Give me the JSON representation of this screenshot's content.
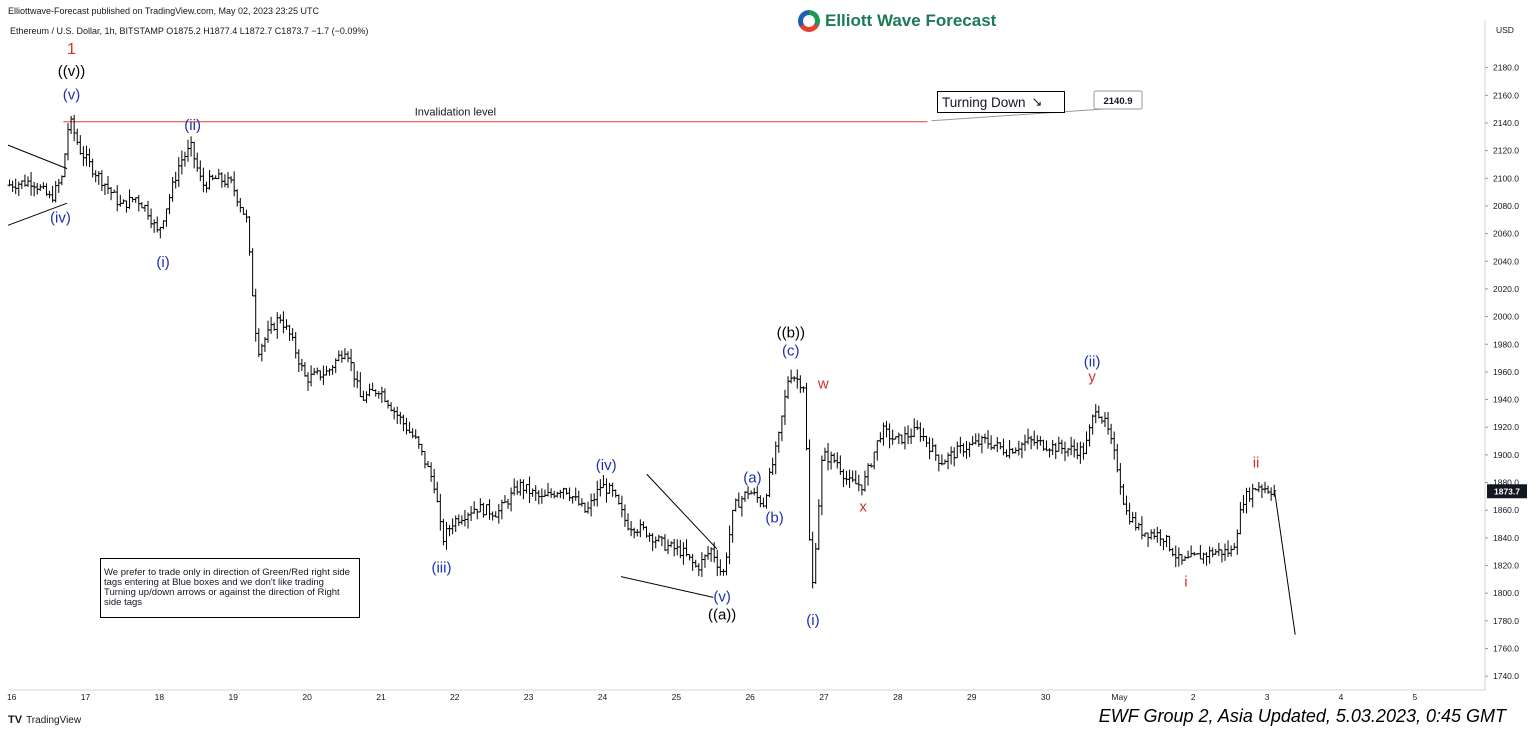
{
  "header": {
    "published": "Elliottwave-Forecast published on TradingView.com, May 02, 2023 23:25 UTC",
    "symbol_line": "Ethereum / U.S. Dollar, 1h, BITSTAMP  O1875.2  H1877.4  L1872.7  C1873.7  −1.7 (−0.09%)"
  },
  "brand": {
    "name": "Elliott Wave Forecast"
  },
  "footer": {
    "tradingview": "TradingView",
    "update": "EWF Group 2, Asia Updated, 5.03.2023, 0:45 GMT"
  },
  "note": "We prefer to trade only in direction of Green/Red right side tags entering at Blue boxes and we don't like trading Turning up/down arrows or against the direction of Right side tags",
  "turning_down": {
    "label": "Turning Down",
    "icon": "trend-down-arrow-icon"
  },
  "chart_data": {
    "type": "ohlc",
    "currency_label": "USD",
    "ylim": [
      1730,
      2200
    ],
    "y_ticks": [
      1740,
      1760,
      1780,
      1800,
      1820,
      1840,
      1860,
      1880,
      1900,
      1920,
      1940,
      1960,
      1980,
      2000,
      2020,
      2040,
      2060,
      2080,
      2100,
      2120,
      2140,
      2160,
      2180
    ],
    "x_ticks": [
      {
        "t": 16.0,
        "label": "16"
      },
      {
        "t": 17.0,
        "label": "17"
      },
      {
        "t": 18.0,
        "label": "18"
      },
      {
        "t": 19.0,
        "label": "19"
      },
      {
        "t": 20.0,
        "label": "20"
      },
      {
        "t": 21.0,
        "label": "21"
      },
      {
        "t": 22.0,
        "label": "22"
      },
      {
        "t": 23.0,
        "label": "23"
      },
      {
        "t": 24.0,
        "label": "24"
      },
      {
        "t": 25.0,
        "label": "25"
      },
      {
        "t": 26.0,
        "label": "26"
      },
      {
        "t": 27.0,
        "label": "27"
      },
      {
        "t": 28.0,
        "label": "28"
      },
      {
        "t": 29.0,
        "label": "29"
      },
      {
        "t": 30.0,
        "label": "30"
      },
      {
        "t": 31.0,
        "label": "May"
      },
      {
        "t": 32.0,
        "label": "2"
      },
      {
        "t": 33.0,
        "label": "3"
      },
      {
        "t": 34.0,
        "label": "4"
      },
      {
        "t": 35.0,
        "label": "5"
      }
    ],
    "time_range": [
      15.95,
      35.95
    ],
    "last_price": 1873.7,
    "invalidation": {
      "value": 2140.9,
      "label": "Invalidation level",
      "t_end": 28.4
    },
    "price_path": [
      [
        15.95,
        2095
      ],
      [
        16.3,
        2098
      ],
      [
        16.55,
        2085
      ],
      [
        16.7,
        2100
      ],
      [
        16.8,
        2143
      ],
      [
        16.95,
        2120
      ],
      [
        17.1,
        2108
      ],
      [
        17.3,
        2095
      ],
      [
        17.5,
        2080
      ],
      [
        17.7,
        2086
      ],
      [
        17.85,
        2078
      ],
      [
        18.0,
        2060
      ],
      [
        18.15,
        2085
      ],
      [
        18.3,
        2112
      ],
      [
        18.45,
        2122
      ],
      [
        18.6,
        2095
      ],
      [
        18.8,
        2100
      ],
      [
        19.0,
        2096
      ],
      [
        19.2,
        2070
      ],
      [
        19.35,
        1975
      ],
      [
        19.5,
        1988
      ],
      [
        19.65,
        2000
      ],
      [
        19.8,
        1985
      ],
      [
        20.0,
        1955
      ],
      [
        20.3,
        1960
      ],
      [
        20.55,
        1978
      ],
      [
        20.75,
        1940
      ],
      [
        21.0,
        1948
      ],
      [
        21.2,
        1932
      ],
      [
        21.5,
        1910
      ],
      [
        21.75,
        1878
      ],
      [
        21.85,
        1838
      ],
      [
        22.0,
        1852
      ],
      [
        22.3,
        1862
      ],
      [
        22.6,
        1858
      ],
      [
        22.9,
        1878
      ],
      [
        23.2,
        1868
      ],
      [
        23.5,
        1877
      ],
      [
        23.8,
        1858
      ],
      [
        24.0,
        1878
      ],
      [
        24.15,
        1873
      ],
      [
        24.35,
        1850
      ],
      [
        24.6,
        1845
      ],
      [
        24.85,
        1835
      ],
      [
        25.1,
        1830
      ],
      [
        25.3,
        1818
      ],
      [
        25.5,
        1832
      ],
      [
        25.65,
        1812
      ],
      [
        25.8,
        1862
      ],
      [
        26.0,
        1874
      ],
      [
        26.2,
        1865
      ],
      [
        26.4,
        1910
      ],
      [
        26.55,
        1960
      ],
      [
        26.75,
        1950
      ],
      [
        26.8,
        1880
      ],
      [
        26.85,
        1795
      ],
      [
        27.0,
        1900
      ],
      [
        27.2,
        1895
      ],
      [
        27.35,
        1880
      ],
      [
        27.55,
        1878
      ],
      [
        27.8,
        1918
      ],
      [
        28.0,
        1910
      ],
      [
        28.3,
        1918
      ],
      [
        28.6,
        1895
      ],
      [
        28.9,
        1905
      ],
      [
        29.2,
        1910
      ],
      [
        29.5,
        1903
      ],
      [
        29.8,
        1910
      ],
      [
        30.2,
        1905
      ],
      [
        30.55,
        1903
      ],
      [
        30.7,
        1935
      ],
      [
        30.85,
        1920
      ],
      [
        31.0,
        1890
      ],
      [
        31.1,
        1860
      ],
      [
        31.3,
        1845
      ],
      [
        31.6,
        1842
      ],
      [
        31.85,
        1822
      ],
      [
        32.0,
        1825
      ],
      [
        32.3,
        1830
      ],
      [
        32.55,
        1830
      ],
      [
        32.7,
        1868
      ],
      [
        32.9,
        1878
      ],
      [
        33.1,
        1874
      ]
    ],
    "projection": {
      "from": [
        33.1,
        1874
      ],
      "to": [
        33.38,
        1770
      ]
    },
    "trend_lines": [
      {
        "from": [
          15.95,
          2124
        ],
        "to": [
          16.75,
          2107
        ]
      },
      {
        "from": [
          15.95,
          2066
        ],
        "to": [
          16.75,
          2082
        ]
      },
      {
        "from": [
          24.6,
          1886
        ],
        "to": [
          25.55,
          1832
        ]
      },
      {
        "from": [
          24.25,
          1812
        ],
        "to": [
          25.5,
          1797
        ]
      }
    ],
    "wave_labels": [
      {
        "text": "1",
        "t": 16.81,
        "v": 2190,
        "color": "#d32f2f"
      },
      {
        "text": "((v))",
        "t": 16.81,
        "v": 2174,
        "color": "#000000"
      },
      {
        "text": "(v)",
        "t": 16.81,
        "v": 2157,
        "color": "#1c2fb4"
      },
      {
        "text": "(iv)",
        "t": 16.66,
        "v": 2068,
        "color": "#1c2fb4"
      },
      {
        "text": "(ii)",
        "t": 18.45,
        "v": 2135,
        "color": "#1c2fb4"
      },
      {
        "text": "(i)",
        "t": 18.05,
        "v": 2036,
        "color": "#1c2fb4"
      },
      {
        "text": "(iii)",
        "t": 21.82,
        "v": 1815,
        "color": "#1c2fb4"
      },
      {
        "text": "(iv)",
        "t": 24.05,
        "v": 1889,
        "color": "#1c2fb4"
      },
      {
        "text": "(v)",
        "t": 25.62,
        "v": 1794,
        "color": "#1c2fb4"
      },
      {
        "text": "((a))",
        "t": 25.62,
        "v": 1781,
        "color": "#000000"
      },
      {
        "text": "(a)",
        "t": 26.03,
        "v": 1880,
        "color": "#1c2fb4"
      },
      {
        "text": "(b)",
        "t": 26.33,
        "v": 1851,
        "color": "#1c2fb4"
      },
      {
        "text": "((b))",
        "t": 26.55,
        "v": 1985,
        "color": "#000000"
      },
      {
        "text": "(c)",
        "t": 26.55,
        "v": 1972,
        "color": "#1c2fb4"
      },
      {
        "text": "(i)",
        "t": 26.85,
        "v": 1777,
        "color": "#1c2fb4"
      },
      {
        "text": "w",
        "t": 26.99,
        "v": 1948,
        "color": "#d32f2f"
      },
      {
        "text": "x",
        "t": 27.53,
        "v": 1859,
        "color": "#d32f2f"
      },
      {
        "text": "(ii)",
        "t": 30.63,
        "v": 1964,
        "color": "#1c2fb4"
      },
      {
        "text": "y",
        "t": 30.63,
        "v": 1953,
        "color": "#d32f2f"
      },
      {
        "text": "i",
        "t": 31.9,
        "v": 1805,
        "color": "#d32f2f"
      },
      {
        "text": "ii",
        "t": 32.85,
        "v": 1891,
        "color": "#d32f2f"
      }
    ]
  }
}
